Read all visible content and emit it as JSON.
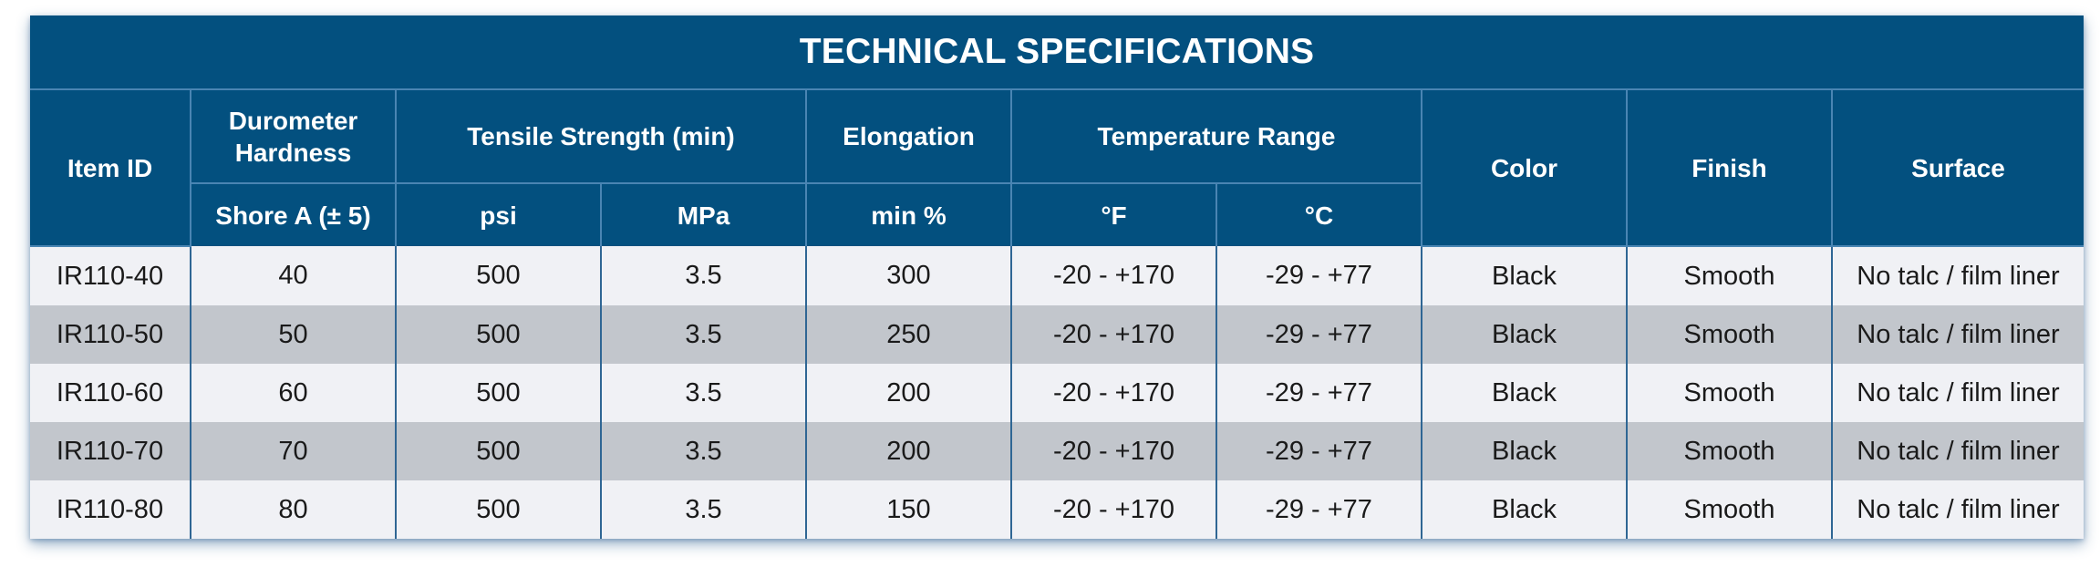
{
  "title": "TECHNICAL SPECIFICATIONS",
  "headers": {
    "item_id": "Item ID",
    "durometer": "Durometer Hardness",
    "durometer_unit": "Shore A (± 5)",
    "tensile": "Tensile Strength (min)",
    "tensile_psi": "psi",
    "tensile_mpa": "MPa",
    "elongation": "Elongation",
    "elongation_unit": "min %",
    "temperature": "Temperature Range",
    "temp_f": "°F",
    "temp_c": "°C",
    "color": "Color",
    "finish": "Finish",
    "surface": "Surface"
  },
  "rows": [
    {
      "item_id": "IR110-40",
      "shore_a": "40",
      "psi": "500",
      "mpa": "3.5",
      "elongation": "300",
      "temp_f": "-20 - +170",
      "temp_c": "-29 - +77",
      "color": "Black",
      "finish": "Smooth",
      "surface": "No talc / film liner"
    },
    {
      "item_id": "IR110-50",
      "shore_a": "50",
      "psi": "500",
      "mpa": "3.5",
      "elongation": "250",
      "temp_f": "-20 - +170",
      "temp_c": "-29 - +77",
      "color": "Black",
      "finish": "Smooth",
      "surface": "No talc / film liner"
    },
    {
      "item_id": "IR110-60",
      "shore_a": "60",
      "psi": "500",
      "mpa": "3.5",
      "elongation": "200",
      "temp_f": "-20 - +170",
      "temp_c": "-29 - +77",
      "color": "Black",
      "finish": "Smooth",
      "surface": "No talc / film liner"
    },
    {
      "item_id": "IR110-70",
      "shore_a": "70",
      "psi": "500",
      "mpa": "3.5",
      "elongation": "200",
      "temp_f": "-20 - +170",
      "temp_c": "-29 - +77",
      "color": "Black",
      "finish": "Smooth",
      "surface": "No talc / film liner"
    },
    {
      "item_id": "IR110-80",
      "shore_a": "80",
      "psi": "500",
      "mpa": "3.5",
      "elongation": "150",
      "temp_f": "-20 - +170",
      "temp_c": "-29 - +77",
      "color": "Black",
      "finish": "Smooth",
      "surface": "No talc / film liner"
    }
  ],
  "colors": {
    "header_bg": "#03507f",
    "row_light": "#f0f1f5",
    "row_dark": "#c2c6cc"
  }
}
